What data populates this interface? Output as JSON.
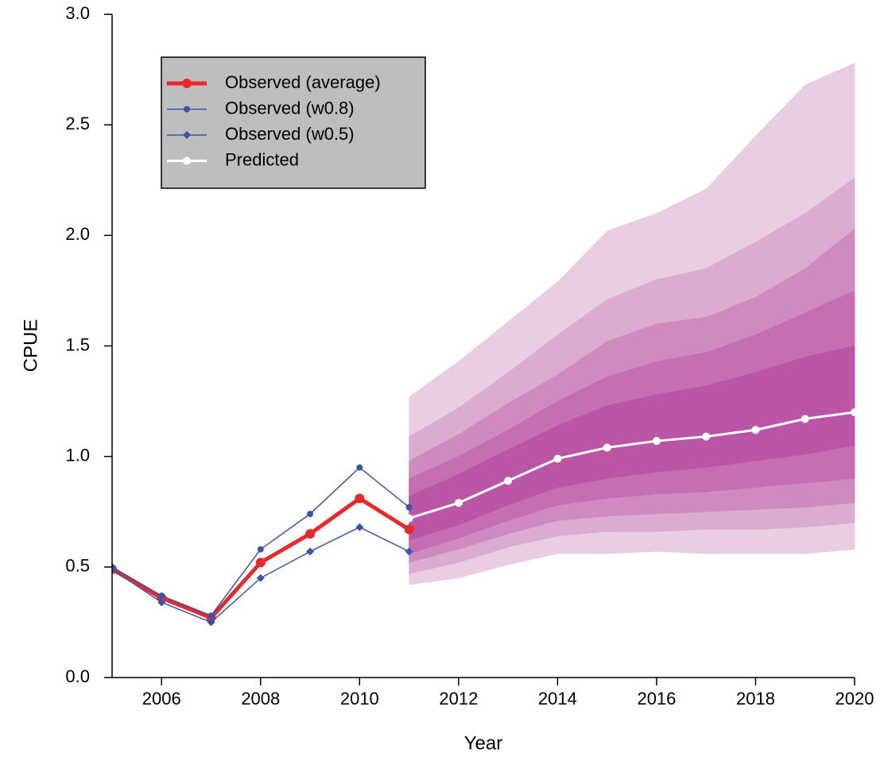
{
  "chart_data": {
    "type": "fan",
    "xlabel": "Year",
    "ylabel": "CPUE",
    "xlim": [
      2005,
      2020
    ],
    "ylim": [
      0,
      3
    ],
    "xticks": [
      2006,
      2008,
      2010,
      2012,
      2014,
      2016,
      2018,
      2020
    ],
    "yticks": [
      {
        "value": 0,
        "label": "0.0"
      },
      0.5,
      {
        "value": 1,
        "label": "1.0"
      },
      1.5,
      {
        "value": 2,
        "label": "2.0"
      },
      2.5,
      {
        "value": 3,
        "label": "3.0"
      }
    ],
    "legend": "top-left",
    "bands": {
      "x": [
        2011,
        2012,
        2013,
        2014,
        2015,
        2016,
        2017,
        2018,
        2019,
        2020
      ],
      "levels": [
        {
          "color": "#e8cde3",
          "upper": [
            1.27,
            1.43,
            1.61,
            1.79,
            2.02,
            2.1,
            2.21,
            2.45,
            2.68,
            2.78
          ],
          "lower": [
            0.42,
            0.45,
            0.51,
            0.56,
            0.56,
            0.57,
            0.56,
            0.56,
            0.56,
            0.58
          ]
        },
        {
          "color": "#dbabd0",
          "upper": [
            1.09,
            1.22,
            1.38,
            1.55,
            1.71,
            1.8,
            1.85,
            1.97,
            2.1,
            2.26
          ],
          "lower": [
            0.47,
            0.52,
            0.59,
            0.64,
            0.66,
            0.66,
            0.67,
            0.67,
            0.68,
            0.7
          ]
        },
        {
          "color": "#cf8bc0",
          "upper": [
            0.98,
            1.1,
            1.24,
            1.37,
            1.52,
            1.6,
            1.63,
            1.72,
            1.85,
            2.03
          ],
          "lower": [
            0.52,
            0.58,
            0.65,
            0.71,
            0.73,
            0.74,
            0.75,
            0.76,
            0.77,
            0.79
          ]
        },
        {
          "color": "#c56fb2",
          "upper": [
            0.9,
            1.0,
            1.12,
            1.25,
            1.36,
            1.43,
            1.47,
            1.55,
            1.65,
            1.75
          ],
          "lower": [
            0.56,
            0.63,
            0.71,
            0.78,
            0.81,
            0.83,
            0.84,
            0.86,
            0.88,
            0.9
          ]
        },
        {
          "color": "#bb56a6",
          "upper": [
            0.82,
            0.92,
            1.03,
            1.14,
            1.23,
            1.28,
            1.32,
            1.38,
            1.45,
            1.5
          ],
          "lower": [
            0.62,
            0.69,
            0.78,
            0.86,
            0.9,
            0.93,
            0.95,
            0.98,
            1.01,
            1.05
          ]
        }
      ]
    },
    "series": [
      {
        "name": "Observed (average)",
        "color": "#e8282b",
        "marker": "circle",
        "width": 5,
        "size": 6,
        "x": [
          2005,
          2006,
          2007,
          2008,
          2009,
          2010,
          2011
        ],
        "values": [
          0.49,
          0.36,
          0.27,
          0.52,
          0.65,
          0.81,
          0.67
        ]
      },
      {
        "name": "Observed (w0.8)",
        "color": "#3a55a8",
        "marker": "circle",
        "width": 1.5,
        "size": 4,
        "x": [
          2005,
          2006,
          2007,
          2008,
          2009,
          2010,
          2011
        ],
        "values": [
          0.5,
          0.37,
          0.28,
          0.58,
          0.74,
          0.95,
          0.77
        ]
      },
      {
        "name": "Observed (w0.5)",
        "color": "#3a55a8",
        "marker": "diamond",
        "width": 1.5,
        "size": 5,
        "x": [
          2005,
          2006,
          2007,
          2008,
          2009,
          2010,
          2011
        ],
        "values": [
          0.49,
          0.34,
          0.25,
          0.45,
          0.57,
          0.68,
          0.57
        ]
      },
      {
        "name": "Predicted",
        "color": "#ffffff",
        "marker": "circle",
        "width": 3,
        "size": 5,
        "x": [
          2011,
          2012,
          2013,
          2014,
          2015,
          2016,
          2017,
          2018,
          2019,
          2020
        ],
        "values": [
          0.72,
          0.79,
          0.89,
          0.99,
          1.04,
          1.07,
          1.09,
          1.12,
          1.17,
          1.2
        ]
      }
    ]
  }
}
